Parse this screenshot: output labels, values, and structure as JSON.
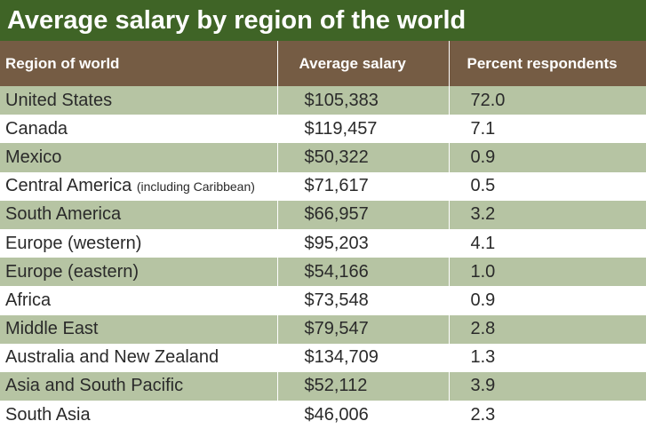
{
  "title": "Average salary by region of the world",
  "colors": {
    "title_bar": "#3f6426",
    "header_row": "#755c44",
    "stripe_row": "#b6c4a3",
    "plain_row": "#ffffff"
  },
  "table": {
    "headers": [
      "Region of world",
      "Average salary",
      "Percent respondents"
    ],
    "rows": [
      {
        "region": "United States",
        "note": "",
        "salary": "$105,383",
        "percent": "72.0"
      },
      {
        "region": "Canada",
        "note": "",
        "salary": "$119,457",
        "percent": "7.1"
      },
      {
        "region": "Mexico",
        "note": "",
        "salary": "$50,322",
        "percent": "0.9"
      },
      {
        "region": "Central America",
        "note": "(including Caribbean)",
        "salary": "$71,617",
        "percent": "0.5"
      },
      {
        "region": "South America",
        "note": "",
        "salary": "$66,957",
        "percent": "3.2"
      },
      {
        "region": "Europe (western)",
        "note": "",
        "salary": "$95,203",
        "percent": "4.1"
      },
      {
        "region": "Europe (eastern)",
        "note": "",
        "salary": "$54,166",
        "percent": "1.0"
      },
      {
        "region": "Africa",
        "note": "",
        "salary": "$73,548",
        "percent": "0.9"
      },
      {
        "region": "Middle East",
        "note": "",
        "salary": "$79,547",
        "percent": "2.8"
      },
      {
        "region": "Australia and New Zealand",
        "note": "",
        "salary": "$134,709",
        "percent": "1.3"
      },
      {
        "region": "Asia and South Pacific",
        "note": "",
        "salary": "$52,112",
        "percent": "3.9"
      },
      {
        "region": "South Asia",
        "note": "",
        "salary": "$46,006",
        "percent": "2.3"
      }
    ]
  }
}
